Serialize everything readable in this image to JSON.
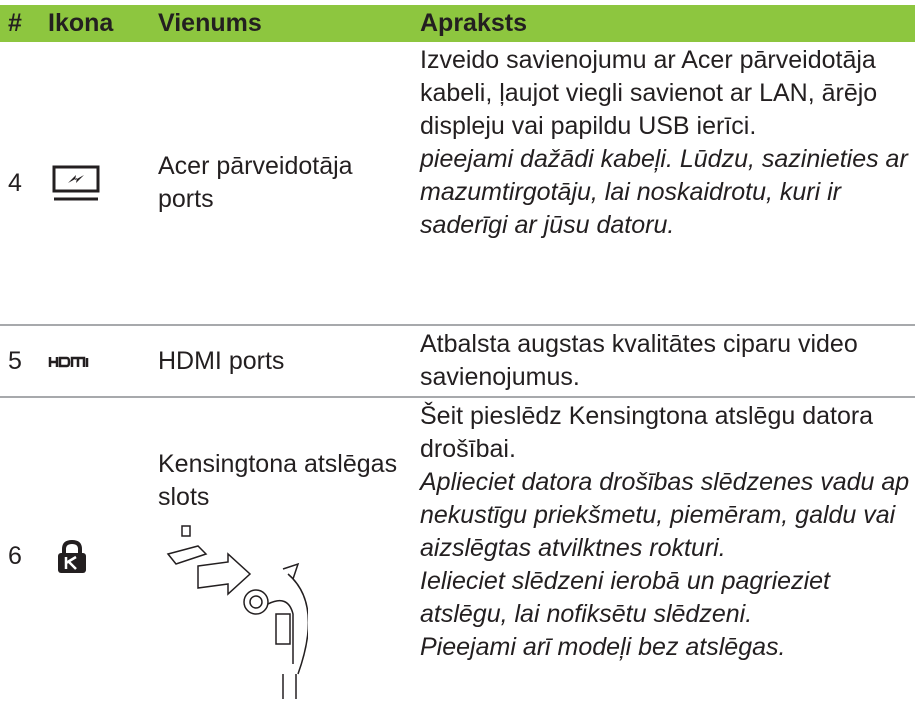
{
  "table": {
    "headers": [
      "#",
      "Ikona",
      "Vienums",
      "Apraksts"
    ],
    "rows": [
      {
        "number": "4",
        "item": "Acer pārveidotāja ports",
        "description": "Izveido savienojumu ar Acer pārveidotāja kabeli, ļaujot viegli savienot ar LAN, ārējo displeju vai papildu USB ierīci.",
        "notes": [
          "pieejami dažādi kabeļi. Lūdzu, sazinieties ar mazumtirgotāju, lai noskaidrotu, kuri ir saderīgi ar jūsu datoru."
        ]
      },
      {
        "number": "5",
        "item": "HDMI ports",
        "description": "Atbalsta augstas kvalitātes ciparu video savienojumus.",
        "notes": []
      },
      {
        "number": "6",
        "item": "Kensingtona atslēgas slots",
        "description": "Šeit pieslēdz Kensingtona atslēgu datora drošībai.",
        "notes": [
          "Aplieciet datora drošības slēdzenes vadu ap nekustīgu priekšmetu, piemēram, galdu vai aizslēgtas atvilktnes rokturi.",
          "Ielieciet slēdzeni ierobā un pagrieziet atslēgu, lai nofiksētu slēdzeni.",
          "Pieejami arī modeļi bez atslēgas."
        ]
      }
    ]
  }
}
